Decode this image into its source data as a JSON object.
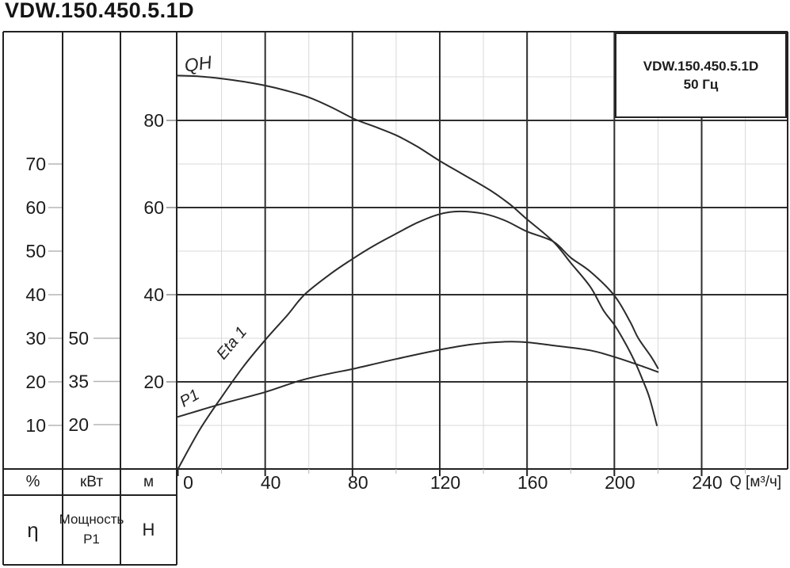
{
  "title": "VDW.150.450.5.1D",
  "legend": {
    "line1": "VDW.150.450.5.1D",
    "line2": "50 Гц"
  },
  "table": {
    "units": {
      "percent": "%",
      "kw": "кВт",
      "m": "м"
    },
    "rows": {
      "eta": "η",
      "power_line1": "Мощность",
      "power_line2": "P1",
      "head": "H"
    }
  },
  "axes": {
    "q": {
      "unit_label": "Q [м³/ч]",
      "major_ticks": [
        0,
        40,
        80,
        120,
        160,
        200,
        240
      ],
      "minor_ticks": [
        20,
        60,
        100,
        140,
        180,
        220,
        260
      ],
      "range": [
        0,
        280
      ]
    },
    "h_m": {
      "ticks": [
        20,
        40,
        60,
        80
      ],
      "minor_levels": [
        10,
        30,
        50,
        70,
        90
      ],
      "range": [
        0,
        100
      ]
    },
    "eta_percent": {
      "ticks": [
        10,
        20,
        30,
        40,
        50,
        60,
        70
      ]
    },
    "p_kw": {
      "ticks": [
        20,
        35,
        50
      ]
    }
  },
  "colors": {
    "curve": "#2b2b2b",
    "grid_major": "#2e2e2e",
    "grid_minor": "#d8d8d8",
    "border": "#222222",
    "tick_light": "#b5b5b5",
    "text": "#1c1c1c"
  },
  "chart_data": {
    "type": "line",
    "title": "VDW.150.450.5.1D 50 Гц — pump performance curves",
    "xlabel": "Q [м³/ч]",
    "x_range": [
      0,
      280
    ],
    "grid": true,
    "curve_labels": {
      "qh": "QH",
      "eta": "Eta 1",
      "p1": "P1"
    },
    "series": [
      {
        "name": "QH",
        "y_unit": "м",
        "scale": "h",
        "points": [
          [
            0,
            90.3
          ],
          [
            10,
            90.1
          ],
          [
            20,
            89.6
          ],
          [
            30,
            88.9
          ],
          [
            40,
            88
          ],
          [
            50,
            86.8
          ],
          [
            60,
            85.3
          ],
          [
            70,
            83.1
          ],
          [
            81,
            80.3
          ],
          [
            90,
            78.6
          ],
          [
            100,
            76.6
          ],
          [
            110,
            73.9
          ],
          [
            120,
            70.7
          ],
          [
            130,
            67.8
          ],
          [
            143,
            64
          ],
          [
            152,
            60.8
          ],
          [
            160,
            57.3
          ],
          [
            172,
            52.2
          ],
          [
            180,
            47.3
          ],
          [
            189,
            41.8
          ],
          [
            195,
            36.4
          ],
          [
            200,
            33.1
          ],
          [
            205,
            28.9
          ],
          [
            209.5,
            24.5
          ],
          [
            213,
            20.4
          ],
          [
            216,
            16.5
          ],
          [
            219.5,
            10
          ]
        ]
      },
      {
        "name": "Eta 1",
        "y_unit": "%",
        "scale": "eta",
        "points": [
          [
            0,
            0
          ],
          [
            10,
            9
          ],
          [
            20,
            16.5
          ],
          [
            30,
            23.5
          ],
          [
            40,
            29.6
          ],
          [
            50,
            35.2
          ],
          [
            58,
            40
          ],
          [
            70,
            44.8
          ],
          [
            80,
            48.2
          ],
          [
            90,
            51.3
          ],
          [
            100,
            54
          ],
          [
            110,
            56.6
          ],
          [
            120,
            58.5
          ],
          [
            129,
            59.1
          ],
          [
            140,
            58.6
          ],
          [
            150,
            57
          ],
          [
            160,
            54.5
          ],
          [
            172,
            52.2
          ],
          [
            180,
            48.5
          ],
          [
            189,
            45.3
          ],
          [
            200,
            39.8
          ],
          [
            207,
            34
          ],
          [
            211,
            30
          ],
          [
            216.8,
            25.8
          ],
          [
            220,
            23.1
          ]
        ]
      },
      {
        "name": "P1",
        "y_unit": "кВт",
        "scale": "p",
        "points": [
          [
            0,
            22.7
          ],
          [
            20,
            27.2
          ],
          [
            40,
            31.3
          ],
          [
            56,
            35.3
          ],
          [
            70,
            37.8
          ],
          [
            80,
            39.3
          ],
          [
            100,
            42.8
          ],
          [
            120,
            46
          ],
          [
            135,
            47.9
          ],
          [
            150,
            48.8
          ],
          [
            160,
            48.6
          ],
          [
            172,
            47.5
          ],
          [
            189,
            45.8
          ],
          [
            200,
            43.5
          ],
          [
            210,
            41
          ],
          [
            220,
            38.3
          ]
        ]
      }
    ]
  }
}
